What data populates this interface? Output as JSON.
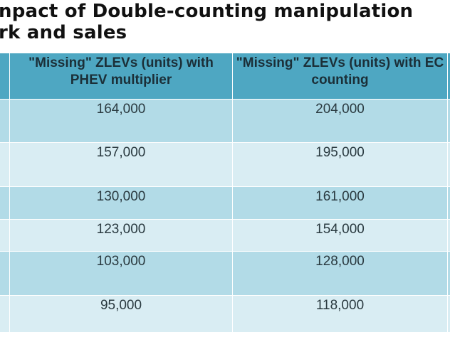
{
  "title": {
    "line1": "npact of Double-counting manipulation",
    "line2": "rk and sales"
  },
  "table": {
    "headers": [
      "\"Missing\" ZLEVs (units) with PHEV multiplier",
      "\"Missing\" ZLEVs (units) with EC counting"
    ],
    "rows": [
      [
        "164,000",
        "204,000"
      ],
      [
        "157,000",
        "195,000"
      ],
      [
        "130,000",
        "161,000"
      ],
      [
        "123,000",
        "154,000"
      ],
      [
        "103,000",
        "128,000"
      ],
      [
        "95,000",
        "118,000"
      ]
    ]
  },
  "colors": {
    "header_bg": "#4ea7c2",
    "row_dark": "#b2dbe7",
    "row_light": "#d9edf3"
  }
}
